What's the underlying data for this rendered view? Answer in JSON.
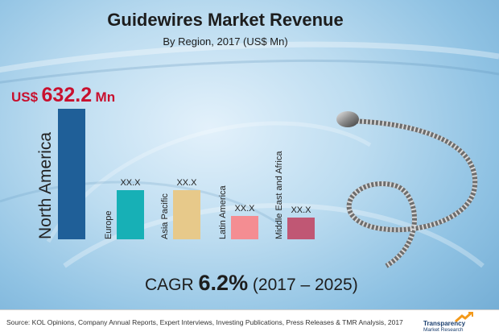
{
  "header": {
    "title": "Guidewires Market Revenue",
    "subtitle": "By Region, 2017 (US$ Mn)"
  },
  "highlight": {
    "currency": "US$",
    "amount": "632.2",
    "unit": "Mn",
    "color": "#c8102e"
  },
  "cagr": {
    "prefix": "CAGR",
    "value": "6.2%",
    "period": "(2017 – 2025)"
  },
  "footer": {
    "source": "Source: KOL Opinions, Company Annual Reports, Expert Interviews, Investing Publications, Press Releases & TMR Analysis, 2017",
    "logo_line1": "Transparency",
    "logo_line2": "Market Research"
  },
  "chart_data": {
    "type": "bar",
    "title": "Guidewires Market Revenue",
    "subtitle": "By Region, 2017 (US$ Mn)",
    "categories": [
      "North America",
      "Europe",
      "Asia Pacific",
      "Latin  America",
      "Middle East and Africa"
    ],
    "values": [
      632.2,
      240,
      240,
      115,
      105
    ],
    "value_labels": [
      "US$ 632.2 Mn",
      "XX.X",
      "XX.X",
      "XX.X",
      "XX.X"
    ],
    "colors": [
      "#1f5f98",
      "#17b0b6",
      "#e7c98a",
      "#f48d92",
      "#c05774"
    ],
    "ylim": [
      0,
      632.2
    ],
    "grid": false,
    "legend": "none"
  }
}
